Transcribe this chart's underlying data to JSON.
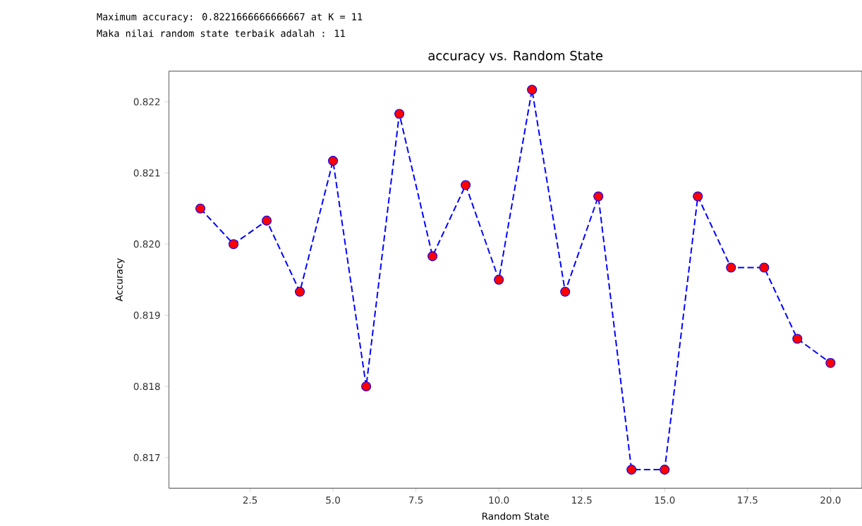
{
  "chart_data": {
    "type": "line",
    "title": "accuracy vs. Random State",
    "xlabel": "Random State",
    "ylabel": "Accuracy",
    "annotations": [
      "Maximum accuracy: 0.8221666666666667 at K = 11",
      "Maka nilai random state terbaik adalah : 11"
    ],
    "x": [
      1,
      2,
      3,
      4,
      5,
      6,
      7,
      8,
      9,
      10,
      11,
      12,
      13,
      14,
      15,
      16,
      17,
      18,
      19,
      20
    ],
    "series": [
      {
        "color": "#0000ff",
        "colors": [
          "#ff0000",
          "#ff0000",
          "#ff0000",
          "#ff0000",
          "#ff0000",
          "#ff0000",
          "#ff0000",
          "#ff0000",
          "#ff0000",
          "#ff0000",
          "#ff0000",
          "#ff0000",
          "#ff0000",
          "#ff0000",
          "#ff0000",
          "#ff0000",
          "#ff0000",
          "#ff0000",
          "#ff0000",
          "#ff0000"
        ],
        "values": [
          0.8205,
          0.82,
          0.82033,
          0.81933,
          0.82117,
          0.818,
          0.82183,
          0.81983,
          0.82083,
          0.8195,
          0.82217,
          0.81933,
          0.82067,
          0.81683,
          0.81683,
          0.82067,
          0.81967,
          0.81967,
          0.81867,
          0.81833
        ]
      }
    ],
    "marker": "circle",
    "line_style": "dashed",
    "xlim": [
      0.05,
      20.95
    ],
    "ylim": [
      0.81657,
      0.82243
    ],
    "xticks": [
      2.5,
      {
        "value": 5,
        "label": "5.0"
      },
      7.5,
      {
        "value": 10,
        "label": "10.0"
      },
      12.5,
      {
        "value": 15,
        "label": "15.0"
      },
      17.5,
      {
        "value": 20,
        "label": "20.0"
      }
    ],
    "yticks": [
      0.817,
      0.818,
      0.819,
      {
        "value": 0.82,
        "label": "0.820"
      },
      0.821,
      0.822
    ]
  }
}
